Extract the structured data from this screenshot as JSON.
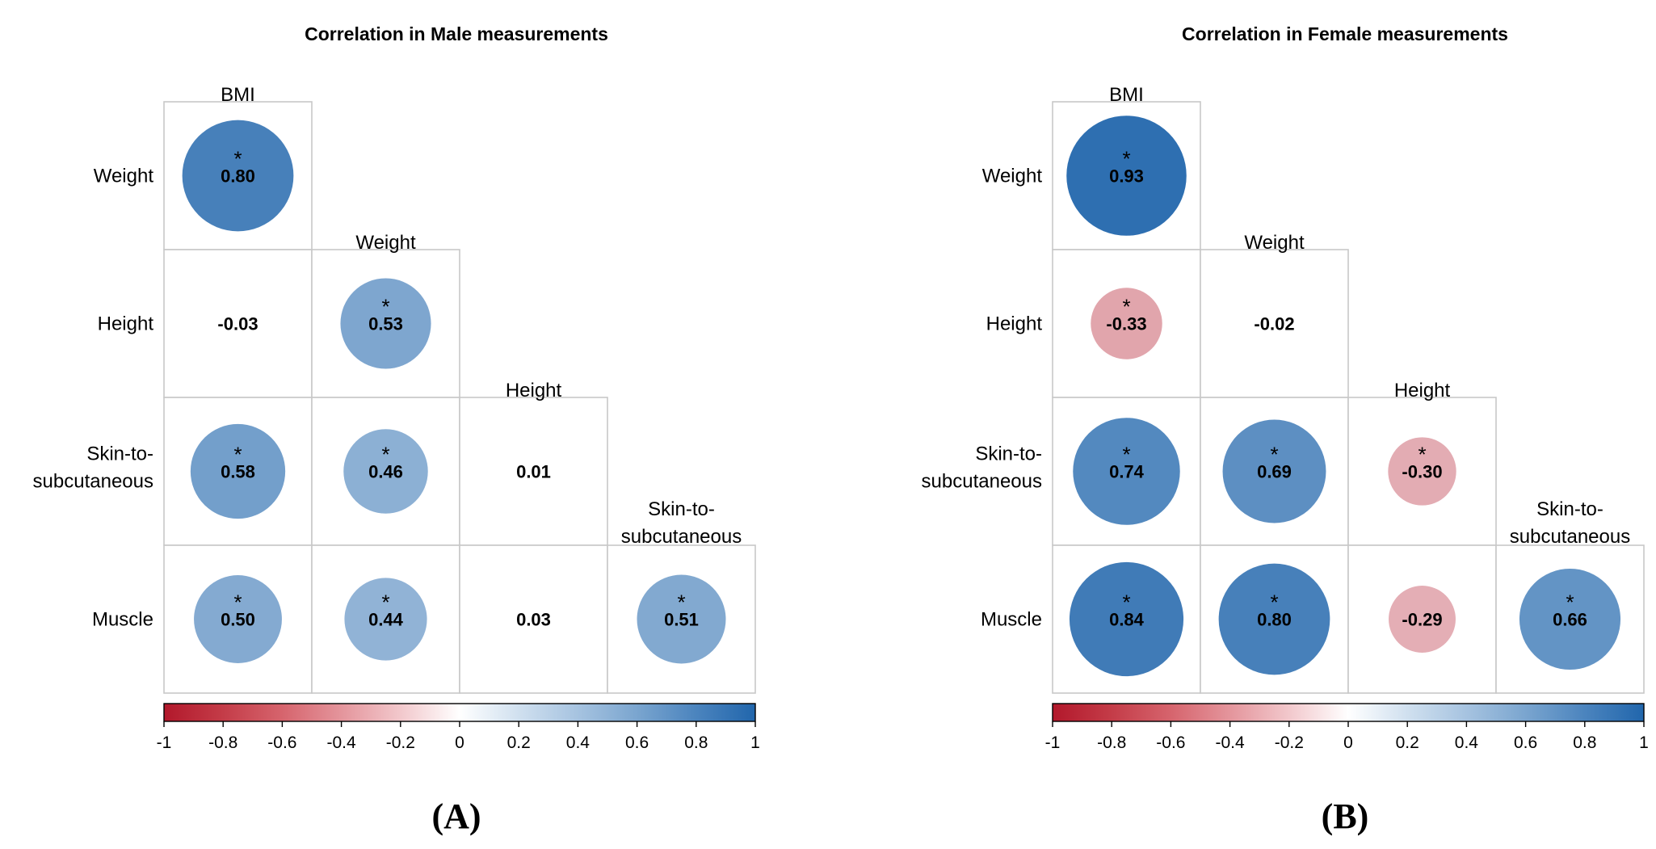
{
  "chart_data": [
    {
      "type": "heatmap",
      "title": "Correlation in Male measurements",
      "panel_label": "(A)",
      "rows": [
        "Weight",
        "Height",
        "Skin-to-subcutaneous",
        "Muscle"
      ],
      "columns": [
        "BMI",
        "Weight",
        "Height",
        "Skin-to-subcutaneous"
      ],
      "cells": [
        {
          "row": "Weight",
          "col": "BMI",
          "value": 0.8,
          "significant": true
        },
        {
          "row": "Height",
          "col": "BMI",
          "value": -0.03,
          "significant": false
        },
        {
          "row": "Height",
          "col": "Weight",
          "value": 0.53,
          "significant": true
        },
        {
          "row": "Skin-to-subcutaneous",
          "col": "BMI",
          "value": 0.58,
          "significant": true
        },
        {
          "row": "Skin-to-subcutaneous",
          "col": "Weight",
          "value": 0.46,
          "significant": true
        },
        {
          "row": "Skin-to-subcutaneous",
          "col": "Height",
          "value": 0.01,
          "significant": false
        },
        {
          "row": "Muscle",
          "col": "BMI",
          "value": 0.5,
          "significant": true
        },
        {
          "row": "Muscle",
          "col": "Weight",
          "value": 0.44,
          "significant": true
        },
        {
          "row": "Muscle",
          "col": "Height",
          "value": 0.03,
          "significant": false
        },
        {
          "row": "Muscle",
          "col": "Skin-to-subcutaneous",
          "value": 0.51,
          "significant": true
        }
      ],
      "display_values": {
        "Weight|BMI": "0.80",
        "Height|BMI": "-0.03",
        "Height|Weight": "0.53",
        "Skin-to-subcutaneous|BMI": "0.58",
        "Skin-to-subcutaneous|Weight": "0.46",
        "Skin-to-subcutaneous|Height": "0.01",
        "Muscle|BMI": "0.50",
        "Muscle|Weight": "0.44",
        "Muscle|Height": "0.03",
        "Muscle|Skin-to-subcutaneous": "0.51"
      },
      "significance_marker": "*",
      "colorbar": {
        "range": [
          -1,
          1
        ],
        "ticks": [
          "-1",
          "-0.8",
          "-0.6",
          "-0.4",
          "-0.2",
          "0",
          "0.2",
          "0.4",
          "0.6",
          "0.8",
          "1"
        ],
        "colors": {
          "negative": "#b2182b",
          "zero": "#ffffff",
          "positive": "#2166ac"
        }
      }
    },
    {
      "type": "heatmap",
      "title": "Correlation in Female measurements",
      "panel_label": "(B)",
      "rows": [
        "Weight",
        "Height",
        "Skin-to-subcutaneous",
        "Muscle"
      ],
      "columns": [
        "BMI",
        "Weight",
        "Height",
        "Skin-to-subcutaneous"
      ],
      "cells": [
        {
          "row": "Weight",
          "col": "BMI",
          "value": 0.93,
          "significant": true
        },
        {
          "row": "Height",
          "col": "BMI",
          "value": -0.33,
          "significant": true
        },
        {
          "row": "Height",
          "col": "Weight",
          "value": -0.02,
          "significant": false
        },
        {
          "row": "Skin-to-subcutaneous",
          "col": "BMI",
          "value": 0.74,
          "significant": true
        },
        {
          "row": "Skin-to-subcutaneous",
          "col": "Weight",
          "value": 0.69,
          "significant": true
        },
        {
          "row": "Skin-to-subcutaneous",
          "col": "Height",
          "value": -0.3,
          "significant": true
        },
        {
          "row": "Muscle",
          "col": "BMI",
          "value": 0.84,
          "significant": true
        },
        {
          "row": "Muscle",
          "col": "Weight",
          "value": 0.8,
          "significant": true
        },
        {
          "row": "Muscle",
          "col": "Height",
          "value": -0.29,
          "significant": false
        },
        {
          "row": "Muscle",
          "col": "Skin-to-subcutaneous",
          "value": 0.66,
          "significant": true
        }
      ],
      "display_values": {
        "Weight|BMI": "0.93",
        "Height|BMI": "-0.33",
        "Height|Weight": "-0.02",
        "Skin-to-subcutaneous|BMI": "0.74",
        "Skin-to-subcutaneous|Weight": "0.69",
        "Skin-to-subcutaneous|Height": "-0.30",
        "Muscle|BMI": "0.84",
        "Muscle|Weight": "0.80",
        "Muscle|Height": "-0.29",
        "Muscle|Skin-to-subcutaneous": "0.66"
      },
      "significance_marker": "*",
      "colorbar": {
        "range": [
          -1,
          1
        ],
        "ticks": [
          "-1",
          "-0.8",
          "-0.6",
          "-0.4",
          "-0.2",
          "0",
          "0.2",
          "0.4",
          "0.6",
          "0.8",
          "1"
        ],
        "colors": {
          "negative": "#b2182b",
          "zero": "#ffffff",
          "positive": "#2166ac"
        }
      }
    }
  ]
}
